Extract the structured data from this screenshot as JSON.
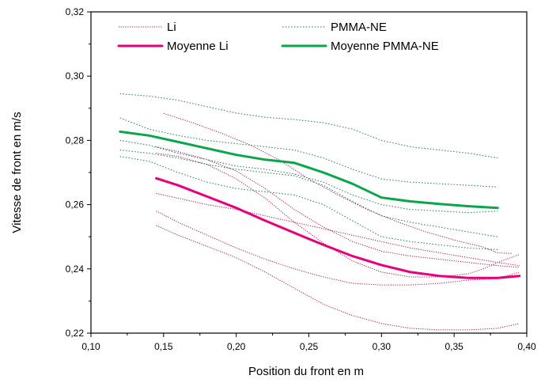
{
  "chart_data": {
    "type": "line",
    "title": "",
    "xlabel": "Position du front en m",
    "ylabel": "Vitesse de front en m/s",
    "xlim": [
      0.1,
      0.4
    ],
    "ylim": [
      0.22,
      0.32
    ],
    "xticks": [
      "0,10",
      "0,15",
      "0,20",
      "0,25",
      "0,30",
      "0,35",
      "0,40"
    ],
    "yticks": [
      "0,22",
      "0,24",
      "0,26",
      "0,28",
      "0,30",
      "0,32"
    ],
    "grid": false,
    "legend_position": "top",
    "colors": {
      "li": "#9b1b4a",
      "moyenne_li": "#e6007e",
      "pmma": "#1b7a5a",
      "moyenne_pmma": "#0aa64a"
    },
    "legend": [
      {
        "key": "li",
        "label": "Li",
        "style": "dotted"
      },
      {
        "key": "pmma",
        "label": "PMMA-NE",
        "style": "dotted"
      },
      {
        "key": "moyenne_li",
        "label": "Moyenne Li",
        "style": "solid"
      },
      {
        "key": "moyenne_pmma",
        "label": "Moyenne PMMA-NE",
        "style": "solid"
      }
    ],
    "series": [
      {
        "group": "li",
        "points": [
          [
            0.15,
            0.2884
          ],
          [
            0.17,
            0.2855
          ],
          [
            0.19,
            0.2822
          ],
          [
            0.21,
            0.2785
          ],
          [
            0.23,
            0.2738
          ],
          [
            0.25,
            0.268
          ],
          [
            0.27,
            0.263
          ],
          [
            0.29,
            0.2585
          ],
          [
            0.31,
            0.2548
          ],
          [
            0.33,
            0.2516
          ],
          [
            0.35,
            0.249
          ],
          [
            0.37,
            0.2468
          ],
          [
            0.38,
            0.245
          ],
          [
            0.39,
            0.2448
          ]
        ]
      },
      {
        "group": "li",
        "points": [
          [
            0.145,
            0.278
          ],
          [
            0.16,
            0.2765
          ],
          [
            0.18,
            0.274
          ],
          [
            0.2,
            0.2705
          ],
          [
            0.22,
            0.265
          ],
          [
            0.24,
            0.2585
          ],
          [
            0.26,
            0.253
          ],
          [
            0.28,
            0.2485
          ],
          [
            0.3,
            0.2455
          ],
          [
            0.32,
            0.244
          ],
          [
            0.34,
            0.243
          ],
          [
            0.36,
            0.242
          ],
          [
            0.38,
            0.241
          ],
          [
            0.395,
            0.2405
          ]
        ]
      },
      {
        "group": "li",
        "points": [
          [
            0.145,
            0.276
          ],
          [
            0.16,
            0.275
          ],
          [
            0.18,
            0.2725
          ],
          [
            0.2,
            0.268
          ],
          [
            0.22,
            0.262
          ],
          [
            0.24,
            0.2545
          ],
          [
            0.26,
            0.248
          ],
          [
            0.28,
            0.2425
          ],
          [
            0.3,
            0.239
          ],
          [
            0.32,
            0.2375
          ],
          [
            0.34,
            0.2375
          ],
          [
            0.36,
            0.2385
          ],
          [
            0.37,
            0.24
          ],
          [
            0.38,
            0.242
          ],
          [
            0.395,
            0.2445
          ]
        ]
      },
      {
        "group": "li",
        "points": [
          [
            0.145,
            0.2635
          ],
          [
            0.16,
            0.262
          ],
          [
            0.18,
            0.26
          ],
          [
            0.2,
            0.2585
          ],
          [
            0.22,
            0.2565
          ],
          [
            0.24,
            0.2545
          ],
          [
            0.26,
            0.2525
          ],
          [
            0.28,
            0.2505
          ],
          [
            0.3,
            0.2485
          ],
          [
            0.32,
            0.2465
          ],
          [
            0.34,
            0.245
          ],
          [
            0.36,
            0.2435
          ],
          [
            0.38,
            0.242
          ],
          [
            0.395,
            0.241
          ]
        ]
      },
      {
        "group": "li",
        "points": [
          [
            0.145,
            0.258
          ],
          [
            0.16,
            0.2545
          ],
          [
            0.18,
            0.2505
          ],
          [
            0.2,
            0.2465
          ],
          [
            0.22,
            0.243
          ],
          [
            0.24,
            0.24
          ],
          [
            0.26,
            0.2375
          ],
          [
            0.28,
            0.2355
          ],
          [
            0.3,
            0.235
          ],
          [
            0.32,
            0.235
          ],
          [
            0.34,
            0.2355
          ],
          [
            0.36,
            0.2365
          ],
          [
            0.38,
            0.237
          ],
          [
            0.395,
            0.239
          ]
        ]
      },
      {
        "group": "li",
        "points": [
          [
            0.145,
            0.2535
          ],
          [
            0.16,
            0.2505
          ],
          [
            0.18,
            0.247
          ],
          [
            0.2,
            0.2435
          ],
          [
            0.22,
            0.239
          ],
          [
            0.24,
            0.234
          ],
          [
            0.26,
            0.229
          ],
          [
            0.28,
            0.2255
          ],
          [
            0.3,
            0.223
          ],
          [
            0.32,
            0.2215
          ],
          [
            0.34,
            0.221
          ],
          [
            0.36,
            0.221
          ],
          [
            0.38,
            0.2215
          ],
          [
            0.395,
            0.223
          ]
        ]
      },
      {
        "group": "pmma",
        "points": [
          [
            0.12,
            0.2945
          ],
          [
            0.14,
            0.2938
          ],
          [
            0.16,
            0.2925
          ],
          [
            0.18,
            0.2905
          ],
          [
            0.2,
            0.2885
          ],
          [
            0.22,
            0.2872
          ],
          [
            0.24,
            0.2865
          ],
          [
            0.26,
            0.2855
          ],
          [
            0.28,
            0.2835
          ],
          [
            0.3,
            0.28
          ],
          [
            0.32,
            0.278
          ],
          [
            0.34,
            0.277
          ],
          [
            0.36,
            0.276
          ],
          [
            0.38,
            0.2745
          ]
        ]
      },
      {
        "group": "pmma",
        "points": [
          [
            0.12,
            0.287
          ],
          [
            0.14,
            0.2835
          ],
          [
            0.16,
            0.2815
          ],
          [
            0.18,
            0.28
          ],
          [
            0.2,
            0.279
          ],
          [
            0.22,
            0.278
          ],
          [
            0.24,
            0.277
          ],
          [
            0.26,
            0.2745
          ],
          [
            0.28,
            0.271
          ],
          [
            0.3,
            0.268
          ],
          [
            0.32,
            0.267
          ],
          [
            0.34,
            0.2665
          ],
          [
            0.36,
            0.266
          ],
          [
            0.38,
            0.2655
          ]
        ]
      },
      {
        "group": "pmma",
        "points": [
          [
            0.12,
            0.28
          ],
          [
            0.14,
            0.2785
          ],
          [
            0.16,
            0.276
          ],
          [
            0.18,
            0.274
          ],
          [
            0.2,
            0.272
          ],
          [
            0.22,
            0.271
          ],
          [
            0.24,
            0.2695
          ],
          [
            0.26,
            0.267
          ],
          [
            0.28,
            0.263
          ],
          [
            0.3,
            0.26
          ],
          [
            0.32,
            0.2585
          ],
          [
            0.34,
            0.258
          ],
          [
            0.36,
            0.2575
          ],
          [
            0.38,
            0.258
          ]
        ]
      },
      {
        "group": "pmma",
        "points": [
          [
            0.12,
            0.277
          ],
          [
            0.14,
            0.276
          ],
          [
            0.16,
            0.2745
          ],
          [
            0.18,
            0.2725
          ],
          [
            0.2,
            0.271
          ],
          [
            0.22,
            0.27
          ],
          [
            0.24,
            0.269
          ],
          [
            0.26,
            0.266
          ],
          [
            0.28,
            0.261
          ],
          [
            0.3,
            0.2565
          ],
          [
            0.32,
            0.2545
          ],
          [
            0.34,
            0.253
          ],
          [
            0.36,
            0.2515
          ],
          [
            0.38,
            0.25
          ]
        ]
      },
      {
        "group": "pmma",
        "points": [
          [
            0.12,
            0.275
          ],
          [
            0.14,
            0.2735
          ],
          [
            0.16,
            0.27
          ],
          [
            0.18,
            0.267
          ],
          [
            0.2,
            0.265
          ],
          [
            0.22,
            0.264
          ],
          [
            0.24,
            0.263
          ],
          [
            0.26,
            0.26
          ],
          [
            0.28,
            0.255
          ],
          [
            0.3,
            0.25
          ],
          [
            0.32,
            0.2485
          ],
          [
            0.34,
            0.2475
          ],
          [
            0.36,
            0.2465
          ],
          [
            0.38,
            0.246
          ]
        ]
      },
      {
        "group": "moyenne_li",
        "points": [
          [
            0.145,
            0.2682
          ],
          [
            0.16,
            0.266
          ],
          [
            0.18,
            0.2625
          ],
          [
            0.2,
            0.259
          ],
          [
            0.22,
            0.255
          ],
          [
            0.24,
            0.2512
          ],
          [
            0.26,
            0.2475
          ],
          [
            0.28,
            0.244
          ],
          [
            0.3,
            0.2412
          ],
          [
            0.32,
            0.239
          ],
          [
            0.34,
            0.2378
          ],
          [
            0.36,
            0.2372
          ],
          [
            0.38,
            0.2372
          ],
          [
            0.395,
            0.2378
          ]
        ]
      },
      {
        "group": "moyenne_pmma",
        "points": [
          [
            0.12,
            0.2827
          ],
          [
            0.14,
            0.2815
          ],
          [
            0.16,
            0.2795
          ],
          [
            0.18,
            0.2775
          ],
          [
            0.2,
            0.2755
          ],
          [
            0.22,
            0.274
          ],
          [
            0.24,
            0.273
          ],
          [
            0.26,
            0.27
          ],
          [
            0.28,
            0.2665
          ],
          [
            0.3,
            0.2622
          ],
          [
            0.32,
            0.261
          ],
          [
            0.34,
            0.2602
          ],
          [
            0.36,
            0.2595
          ],
          [
            0.38,
            0.259
          ]
        ]
      }
    ]
  }
}
